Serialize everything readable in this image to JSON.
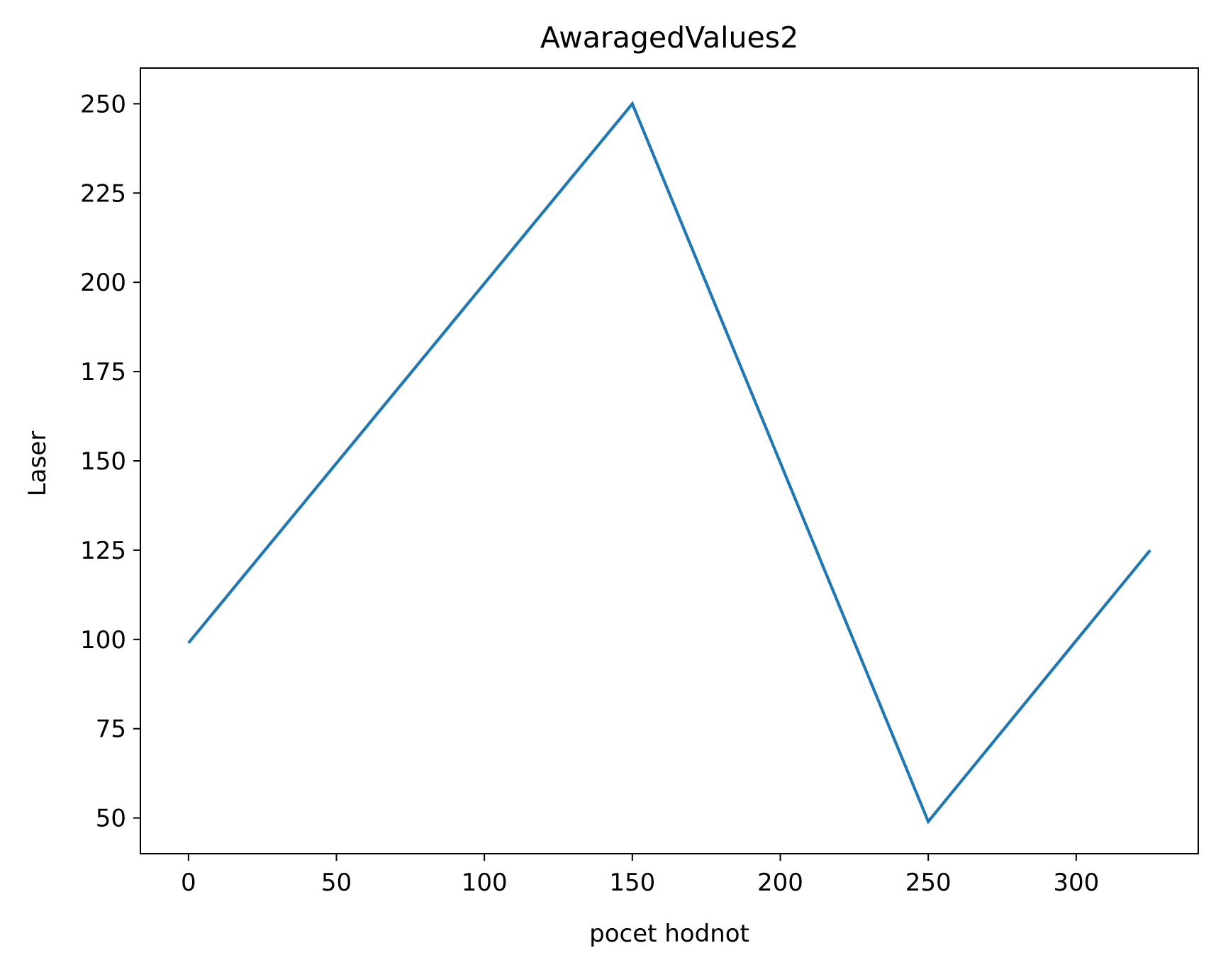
{
  "chart_data": {
    "type": "line",
    "title": "AwaragedValues2",
    "xlabel": "pocet hodnot",
    "ylabel": "Laser",
    "xlim": [
      -16.25,
      341.25
    ],
    "ylim": [
      40,
      260
    ],
    "xticks": [
      0,
      50,
      100,
      150,
      200,
      250,
      300
    ],
    "yticks": [
      50,
      75,
      100,
      125,
      150,
      175,
      200,
      225,
      250
    ],
    "grid": false,
    "legend": "none",
    "series": [
      {
        "color": "#1f77b4",
        "x": [
          0,
          150,
          250,
          325
        ],
        "y": [
          99,
          250,
          49,
          125
        ]
      }
    ]
  }
}
